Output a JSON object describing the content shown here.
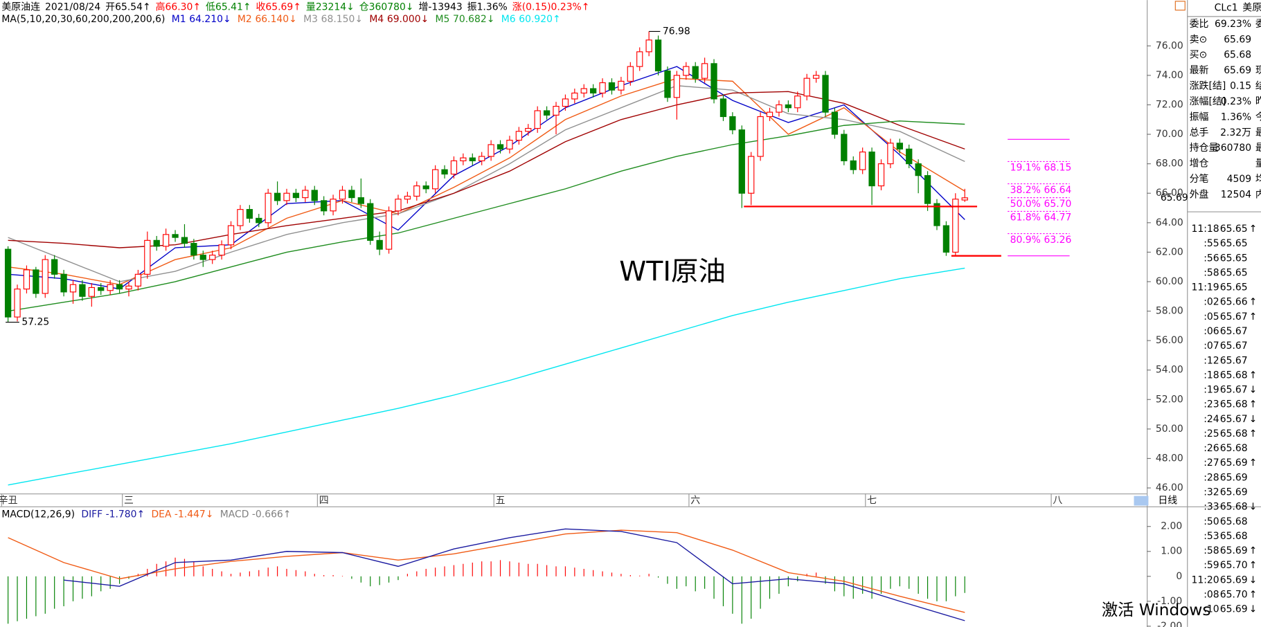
{
  "header": {
    "items": [
      {
        "text": "美原油连",
        "color": "#000000"
      },
      {
        "text": "2021/08/24",
        "color": "#000000"
      },
      {
        "text": "开65.54↑",
        "color": "#000000"
      },
      {
        "text": "高66.30↑",
        "color": "#ff0000"
      },
      {
        "text": "低65.41↑",
        "color": "#008000"
      },
      {
        "text": "收65.69↑",
        "color": "#ff0000"
      },
      {
        "text": "量23214↓",
        "color": "#008000"
      },
      {
        "text": "仓360780↓",
        "color": "#008000"
      },
      {
        "text": "增-13943",
        "color": "#000000"
      },
      {
        "text": "振1.36%",
        "color": "#000000"
      },
      {
        "text": "涨(0.15)0.23%↑",
        "color": "#ff0000"
      }
    ]
  },
  "chart_data": {
    "type": "candlestick",
    "title": "WTI原油",
    "ma_label": "MA(5,10,20,30,60,200,200,200,6)",
    "up_color": "#ff0000",
    "down_color": "#008000",
    "open": [
      62.2,
      57.6,
      59.5,
      60.8,
      59.2,
      61.5,
      60.5,
      59.3,
      59.8,
      59.0,
      59.6,
      59.4,
      59.8,
      59.5,
      59.7,
      60.5,
      62.8,
      62.4,
      63.2,
      63.0,
      62.6,
      61.8,
      61.5,
      61.8,
      62.5,
      63.8,
      64.9,
      64.3,
      64.0,
      66.0,
      65.5,
      66.0,
      65.7,
      66.2,
      65.5,
      64.8,
      65.6,
      66.2,
      65.7,
      65.3,
      62.8,
      62.2,
      64.8,
      65.6,
      65.8,
      66.5,
      66.3,
      67.6,
      67.3,
      68.2,
      68.4,
      68.2,
      68.5,
      69.3,
      69.0,
      69.6,
      70.2,
      70.4,
      71.6,
      71.3,
      71.9,
      72.4,
      72.8,
      73.1,
      72.8,
      73.5,
      73.0,
      73.6,
      74.6,
      75.6,
      76.4,
      74.3,
      72.5,
      74.0,
      74.6,
      73.8,
      74.8,
      72.4,
      71.2,
      70.3,
      66.0,
      68.5,
      71.2,
      71.5,
      72.0,
      71.8,
      72.6,
      73.8,
      74.0,
      71.5,
      70.0,
      68.2,
      67.6,
      68.8,
      66.5,
      68.0,
      69.4,
      69.0,
      68.0,
      67.2,
      65.3,
      63.8,
      62.0,
      65.54
    ],
    "high": [
      62.4,
      59.8,
      61.1,
      61.0,
      61.8,
      61.8,
      60.8,
      60.1,
      60.1,
      59.9,
      59.9,
      60.1,
      60.1,
      60.0,
      60.8,
      63.4,
      63.1,
      63.6,
      63.5,
      63.9,
      62.9,
      62.1,
      62.1,
      62.8,
      64.1,
      65.2,
      65.2,
      64.6,
      66.3,
      66.8,
      66.3,
      66.3,
      66.5,
      66.5,
      65.8,
      65.9,
      66.5,
      66.5,
      67.0,
      65.6,
      63.4,
      65.1,
      65.9,
      66.1,
      66.8,
      66.8,
      67.9,
      67.9,
      68.5,
      68.7,
      68.7,
      68.8,
      69.6,
      69.6,
      69.9,
      70.5,
      70.7,
      71.9,
      71.9,
      72.2,
      72.7,
      73.1,
      73.4,
      73.4,
      73.8,
      73.8,
      73.9,
      74.9,
      75.9,
      76.98,
      76.7,
      74.6,
      74.3,
      74.9,
      74.9,
      75.2,
      75.1,
      72.7,
      71.5,
      70.6,
      68.8,
      71.5,
      71.8,
      72.3,
      72.3,
      72.9,
      74.1,
      74.3,
      74.3,
      71.8,
      70.3,
      68.5,
      69.1,
      69.1,
      68.3,
      69.7,
      69.7,
      69.3,
      68.3,
      67.5,
      65.6,
      64.1,
      66.0,
      66.3
    ],
    "low": [
      57.25,
      57.3,
      59.2,
      58.9,
      58.9,
      60.2,
      59.0,
      58.5,
      58.7,
      58.3,
      59.1,
      59.1,
      59.2,
      59.0,
      59.4,
      60.2,
      62.1,
      62.1,
      62.7,
      62.3,
      61.5,
      61.0,
      61.2,
      61.5,
      62.2,
      63.5,
      64.0,
      63.7,
      63.7,
      65.2,
      65.2,
      65.4,
      65.4,
      65.2,
      64.5,
      64.5,
      65.3,
      65.4,
      65.0,
      62.5,
      61.8,
      61.9,
      64.5,
      65.3,
      65.5,
      66.0,
      66.0,
      67.0,
      67.0,
      67.9,
      67.9,
      67.9,
      68.2,
      68.7,
      68.7,
      69.3,
      69.9,
      70.1,
      71.0,
      70.0,
      71.6,
      72.1,
      72.5,
      72.5,
      72.5,
      72.7,
      72.7,
      73.3,
      74.3,
      75.3,
      74.0,
      72.2,
      71.0,
      73.7,
      73.5,
      73.5,
      72.1,
      70.9,
      70.0,
      65.0,
      65.2,
      68.2,
      70.9,
      71.2,
      71.5,
      71.5,
      72.3,
      73.5,
      71.2,
      69.7,
      67.9,
      67.3,
      67.3,
      65.2,
      66.2,
      67.7,
      68.7,
      67.7,
      66.0,
      64.8,
      63.5,
      61.75,
      61.8,
      65.41
    ],
    "close": [
      57.6,
      59.5,
      60.8,
      59.2,
      61.5,
      60.5,
      59.3,
      59.8,
      59.0,
      59.6,
      59.4,
      59.8,
      59.5,
      59.7,
      60.5,
      62.8,
      62.4,
      63.2,
      63.0,
      62.6,
      61.8,
      61.5,
      61.8,
      62.5,
      63.8,
      64.9,
      64.3,
      64.0,
      66.0,
      65.5,
      66.0,
      65.7,
      66.2,
      65.5,
      64.8,
      65.6,
      66.2,
      65.7,
      65.3,
      62.8,
      62.2,
      64.8,
      65.6,
      65.8,
      66.5,
      66.3,
      67.6,
      67.3,
      68.2,
      68.4,
      68.2,
      68.5,
      69.3,
      69.0,
      69.6,
      70.2,
      70.4,
      71.6,
      71.3,
      71.9,
      72.4,
      72.8,
      73.1,
      72.8,
      73.5,
      73.0,
      73.6,
      74.6,
      75.6,
      76.4,
      74.3,
      72.5,
      74.0,
      74.6,
      73.8,
      74.8,
      72.4,
      71.2,
      70.3,
      66.0,
      68.5,
      71.2,
      71.5,
      72.0,
      71.8,
      72.6,
      73.8,
      74.0,
      71.5,
      70.0,
      68.2,
      67.6,
      68.8,
      66.5,
      68.0,
      69.4,
      69.0,
      68.0,
      67.2,
      65.3,
      63.8,
      62.0,
      65.6,
      65.69
    ],
    "ylim": [
      45.62,
      78.02
    ],
    "yticks": [
      {
        "value": 46,
        "label": "46.00"
      },
      {
        "value": 48,
        "label": "48.00"
      },
      {
        "value": 50,
        "label": "50.00"
      },
      {
        "value": 52,
        "label": "52.00"
      },
      {
        "value": 54,
        "label": "54.00"
      },
      {
        "value": 56,
        "label": "56.00"
      },
      {
        "value": 58,
        "label": "58.00"
      },
      {
        "value": 60,
        "label": "60.00"
      },
      {
        "value": 62,
        "label": "62.00"
      },
      {
        "value": 64,
        "label": "64.00"
      },
      {
        "value": 66,
        "label": "66.00"
      },
      {
        "value": 68,
        "label": "68.00"
      },
      {
        "value": 70,
        "label": "70.00"
      },
      {
        "value": 72,
        "label": "72.00"
      },
      {
        "value": 74,
        "label": "74.00"
      },
      {
        "value": 76,
        "label": "76.00"
      }
    ],
    "series": [
      {
        "name": "M1",
        "label": "64.210↓",
        "color": "#0000c8",
        "x": [
          0,
          6,
          12,
          18,
          24,
          30,
          36,
          42,
          48,
          54,
          60,
          66,
          72,
          78,
          84,
          90,
          96,
          103
        ],
        "values": [
          60.5,
          60.2,
          59.5,
          62.3,
          62.5,
          65.3,
          65.5,
          63.5,
          67.2,
          69.2,
          71.8,
          73.3,
          74.6,
          72.3,
          70.8,
          72.0,
          68.6,
          64.21
        ]
      },
      {
        "name": "M2",
        "label": "66.140↓",
        "color": "#f05a14",
        "x": [
          0,
          6,
          12,
          18,
          24,
          30,
          36,
          42,
          48,
          54,
          60,
          66,
          72,
          78,
          84,
          90,
          96,
          103
        ],
        "values": [
          61.0,
          60.5,
          59.8,
          61.5,
          62.3,
          64.3,
          65.5,
          64.6,
          66.4,
          68.4,
          71.0,
          72.6,
          73.8,
          73.6,
          70.0,
          71.8,
          68.8,
          66.14
        ]
      },
      {
        "name": "M3",
        "label": "68.150↓",
        "color": "#909090",
        "x": [
          0,
          6,
          12,
          18,
          24,
          30,
          36,
          42,
          48,
          54,
          60,
          66,
          72,
          78,
          84,
          90,
          96,
          103
        ],
        "values": [
          63.0,
          61.5,
          60.0,
          60.7,
          62.0,
          63.2,
          64.0,
          64.6,
          66.0,
          68.0,
          70.3,
          71.8,
          73.3,
          73.0,
          71.4,
          71.0,
          70.2,
          68.15
        ]
      },
      {
        "name": "M4",
        "label": "69.000↓",
        "color": "#a00000",
        "x": [
          0,
          6,
          12,
          18,
          24,
          30,
          36,
          42,
          48,
          54,
          60,
          66,
          72,
          78,
          84,
          90,
          96,
          103
        ],
        "values": [
          62.8,
          62.6,
          62.3,
          62.5,
          63.2,
          63.8,
          64.3,
          64.8,
          66.0,
          67.5,
          69.5,
          71.0,
          72.0,
          72.8,
          72.9,
          72.1,
          70.6,
          69.0
        ]
      },
      {
        "name": "M5",
        "label": "70.682↓",
        "color": "#1e8c1e",
        "x": [
          0,
          6,
          12,
          18,
          24,
          30,
          36,
          42,
          48,
          54,
          60,
          66,
          72,
          78,
          84,
          90,
          96,
          103
        ],
        "values": [
          58.0,
          58.6,
          59.2,
          60.0,
          61.0,
          62.0,
          62.7,
          63.3,
          64.3,
          65.3,
          66.3,
          67.5,
          68.5,
          69.3,
          69.9,
          70.6,
          70.9,
          70.682
        ]
      },
      {
        "name": "M6",
        "label": "60.920↑",
        "color": "#00e6f0",
        "x": [
          0,
          6,
          12,
          18,
          24,
          30,
          36,
          42,
          48,
          54,
          60,
          66,
          72,
          78,
          84,
          90,
          96,
          103
        ],
        "values": [
          46.2,
          46.9,
          47.6,
          48.3,
          49.0,
          49.8,
          50.6,
          51.4,
          52.3,
          53.3,
          54.4,
          55.5,
          56.6,
          57.7,
          58.6,
          59.4,
          60.2,
          60.92
        ]
      }
    ],
    "fib": {
      "color": "#ff00ff",
      "top": 69.66,
      "bottom": 61.75,
      "levels": [
        {
          "ratio": "19.1%",
          "value": 68.15,
          "label": "68.15"
        },
        {
          "ratio": "38.2%",
          "value": 66.64,
          "label": "66.64"
        },
        {
          "ratio": "50.0%",
          "value": 65.7,
          "label": "65.70"
        },
        {
          "ratio": "61.8%",
          "value": 64.77,
          "label": "64.77"
        },
        {
          "ratio": "80.9%",
          "value": 63.26,
          "label": "63.26"
        }
      ]
    },
    "support": [
      65.1,
      61.75
    ],
    "period_labels": [
      {
        "label": "辛丑",
        "x": 0
      },
      {
        "label": "三",
        "x": 13
      },
      {
        "label": "四",
        "x": 34
      },
      {
        "label": "五",
        "x": 53
      },
      {
        "label": "六",
        "x": 74
      },
      {
        "label": "七",
        "x": 93
      },
      {
        "label": "八",
        "x": 113
      }
    ],
    "interval_label": "日线",
    "macd": {
      "label": "MACD(12,26,9)",
      "diff_label": "DIFF -1.780↑",
      "dea_label": "DEA -1.447↓",
      "macd_label": "MACD -0.666↑",
      "diff_color": "#1a1aa0",
      "dea_color": "#f05a14",
      "x": [
        0,
        6,
        12,
        18,
        24,
        30,
        36,
        42,
        48,
        54,
        60,
        66,
        72,
        78,
        84,
        90,
        96,
        103
      ],
      "diff": [
        null,
        -0.15,
        -0.4,
        0.55,
        0.65,
        1.0,
        0.95,
        0.4,
        1.1,
        1.55,
        1.9,
        1.8,
        1.35,
        -0.3,
        -0.1,
        -0.3,
        -1.0,
        -1.78
      ],
      "dea": [
        1.55,
        0.55,
        -0.1,
        0.3,
        0.6,
        0.8,
        0.95,
        0.65,
        0.9,
        1.3,
        1.7,
        1.85,
        1.75,
        1.05,
        0.15,
        -0.2,
        -0.8,
        -1.447
      ],
      "hist": [
        -1.9,
        -1.8,
        -1.7,
        -1.6,
        -1.5,
        -1.3,
        -1.2,
        -1.0,
        -0.9,
        -0.8,
        -0.6,
        -0.5,
        -0.3,
        -0.1,
        0.1,
        0.3,
        0.5,
        0.6,
        0.75,
        0.7,
        0.6,
        0.4,
        0.3,
        0.2,
        0.1,
        0.15,
        0.2,
        0.25,
        0.35,
        0.4,
        0.3,
        0.25,
        0.2,
        0.1,
        0.05,
        0.05,
        0.02,
        -0.1,
        -0.25,
        -0.4,
        -0.35,
        -0.25,
        -0.15,
        0.1,
        0.2,
        0.3,
        0.35,
        0.4,
        0.45,
        0.5,
        0.55,
        0.6,
        0.6,
        0.65,
        0.6,
        0.55,
        0.5,
        0.5,
        0.45,
        0.4,
        0.4,
        0.35,
        0.3,
        0.25,
        0.2,
        0.15,
        0.1,
        0.05,
        0.03,
        0.1,
        -0.05,
        -0.3,
        -0.5,
        -0.4,
        -0.6,
        -0.5,
        -0.9,
        -1.2,
        -1.5,
        -1.9,
        -1.7,
        -1.3,
        -0.9,
        -0.7,
        -0.4,
        -0.2,
        0.1,
        0.15,
        -0.3,
        -0.6,
        -0.8,
        -0.9,
        -0.7,
        -0.9,
        -0.7,
        -0.5,
        -0.4,
        -0.5,
        -0.7,
        -0.9,
        -1.0,
        -1.0,
        -0.8,
        -0.666
      ],
      "ylim": [
        -2.03,
        2.74
      ],
      "yticks": [
        {
          "value": 2,
          "label": "2.00"
        },
        {
          "value": 1,
          "label": "1.00"
        },
        0,
        {
          "value": -1,
          "label": "-1.00"
        },
        {
          "value": -2,
          "label": "-2.00"
        }
      ]
    }
  },
  "quote_panel": {
    "symbol": "CLc1",
    "name": "美原",
    "rows": [
      {
        "label": "委比",
        "value": "69.23%",
        "color": "#008000",
        "extra": "委"
      },
      {
        "label": "卖⊙",
        "value": "65.69",
        "color": "#ff0000"
      },
      {
        "label": "买⊙",
        "value": "65.68",
        "color": "#ff0000"
      },
      {
        "label": "最新",
        "value": "65.69",
        "color": "#ff0000",
        "extra": "现"
      },
      {
        "label": "涨跌[结]",
        "value": "0.15",
        "color": "#ff0000",
        "extra": "结"
      },
      {
        "label": "涨幅[结]",
        "value": "0.23%",
        "color": "#ff0000",
        "extra": "昨"
      },
      {
        "label": "振幅",
        "value": "1.36%",
        "color": "#000000",
        "extra": "今"
      },
      {
        "label": "总手",
        "value": "2.32万",
        "color": "#000000",
        "extra": "最"
      },
      {
        "label": "持仓量",
        "value": "360780",
        "color": "#000000",
        "extra": "最"
      },
      {
        "label": "增仓",
        "extra": "量"
      },
      {
        "label": "分笔",
        "value": "4509",
        "color": "#000000",
        "extra": "均"
      },
      {
        "label": "外盘",
        "value": "12504",
        "color": "#ff0000",
        "extra": "内"
      }
    ]
  },
  "trades": [
    {
      "time": "11:18",
      "price": "65.65",
      "arrow": "↑"
    },
    {
      "time": ":55",
      "price": "65.65"
    },
    {
      "time": ":56",
      "price": "65.65"
    },
    {
      "time": ":58",
      "price": "65.65"
    },
    {
      "time": "11:19",
      "price": "65.65"
    },
    {
      "time": ":02",
      "price": "65.66",
      "arrow": "↑"
    },
    {
      "time": ":05",
      "price": "65.67",
      "arrow": "↑"
    },
    {
      "time": ":06",
      "price": "65.67"
    },
    {
      "time": ":07",
      "price": "65.67"
    },
    {
      "time": ":12",
      "price": "65.67"
    },
    {
      "time": ":18",
      "price": "65.68",
      "arrow": "↑"
    },
    {
      "time": ":19",
      "price": "65.67",
      "arrow": "↓"
    },
    {
      "time": ":23",
      "price": "65.68",
      "arrow": "↑"
    },
    {
      "time": ":24",
      "price": "65.67",
      "arrow": "↓"
    },
    {
      "time": ":25",
      "price": "65.68",
      "arrow": "↑"
    },
    {
      "time": ":26",
      "price": "65.68"
    },
    {
      "time": ":27",
      "price": "65.69",
      "arrow": "↑"
    },
    {
      "time": ":28",
      "price": "65.69"
    },
    {
      "time": ":32",
      "price": "65.69"
    },
    {
      "time": ":33",
      "price": "65.68",
      "arrow": "↓"
    },
    {
      "time": ":50",
      "price": "65.68"
    },
    {
      "time": ":53",
      "price": "65.68"
    },
    {
      "time": ":58",
      "price": "65.69",
      "arrow": "↑"
    },
    {
      "time": ":59",
      "price": "65.70",
      "arrow": "↑"
    },
    {
      "time": "11:20",
      "price": "65.69",
      "arrow": "↓"
    },
    {
      "time": ":08",
      "price": "65.70",
      "arrow": "↑"
    },
    {
      "time": ":10",
      "price": "65.69",
      "arrow": "↓"
    }
  ],
  "watermark": "激活 Windows"
}
